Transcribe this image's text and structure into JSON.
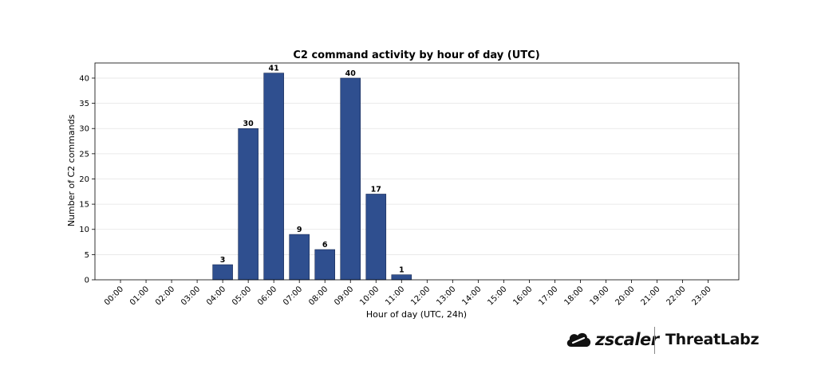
{
  "chart_data": {
    "type": "bar",
    "title": "C2 command activity by hour of day (UTC)",
    "xlabel": "Hour of day (UTC, 24h)",
    "ylabel": "Number of C2 commands",
    "categories": [
      "00:00",
      "01:00",
      "02:00",
      "03:00",
      "04:00",
      "05:00",
      "06:00",
      "07:00",
      "08:00",
      "09:00",
      "10:00",
      "11:00",
      "12:00",
      "13:00",
      "14:00",
      "15:00",
      "16:00",
      "17:00",
      "18:00",
      "19:00",
      "20:00",
      "21:00",
      "22:00",
      "23:00"
    ],
    "values": [
      0,
      0,
      0,
      0,
      3,
      30,
      41,
      9,
      6,
      40,
      17,
      1,
      0,
      0,
      0,
      0,
      0,
      0,
      0,
      0,
      0,
      0,
      0,
      0
    ],
    "ylim": [
      0,
      43
    ],
    "yticks": [
      0,
      5,
      10,
      15,
      20,
      25,
      30,
      35,
      40
    ],
    "grid": "horizontal",
    "bar_color": "#2f4f8f",
    "bar_edge_color": "#1a2b55",
    "show_data_labels_for_nonzero": true
  },
  "branding": {
    "logo_icon": "zscaler-cloud-icon",
    "zscaler_text": "zscaler",
    "threatlabz_text": "ThreatLabz"
  }
}
